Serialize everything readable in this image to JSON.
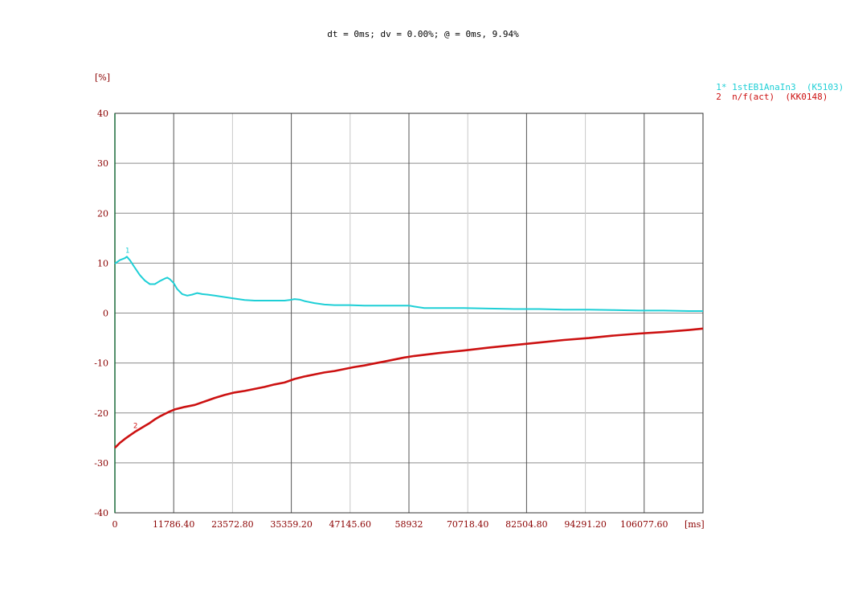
{
  "header_text": "dt = 0ms; dv = 0.00%; @ = 0ms, 9.94%",
  "legend": [
    {
      "text": "1* 1stEB1AnaIn3  (K5103)",
      "color": "#1ecfd6"
    },
    {
      "text": "2  n/f(act)  (KK0148)",
      "color": "#cc1111"
    }
  ],
  "chart_data": {
    "type": "line",
    "title": "dt = 0ms; dv = 0.00%; @ = 0ms, 9.94%",
    "xlabel": "[ms]",
    "ylabel": "[%]",
    "xlim": [
      0,
      117864
    ],
    "ylim": [
      -40,
      40
    ],
    "x_ticks": [
      0,
      11786.4,
      23572.8,
      35359.2,
      47145.6,
      58932,
      70718.4,
      82504.8,
      94291.2,
      106077.6
    ],
    "x_tick_labels": [
      "0",
      "11786.40",
      "23572.80",
      "35359.20",
      "47145.60",
      "58932",
      "70718.40",
      "82504.80",
      "94291.20",
      "106077.60"
    ],
    "y_ticks": [
      -40,
      -30,
      -20,
      -10,
      0,
      10,
      20,
      30,
      40
    ],
    "y_tick_labels": [
      "-40",
      "-30",
      "-20",
      "-10",
      "0",
      "10",
      "20",
      "30",
      "40"
    ],
    "grid": true,
    "legend_position": "top-right",
    "series": [
      {
        "name": "1* 1stEB1AnaIn3  (K5103)",
        "marker_label": "1",
        "color": "#1ecfd6",
        "x": [
          0,
          1000,
          2000,
          2400,
          3000,
          4000,
          5000,
          6000,
          7000,
          8000,
          9000,
          10000,
          10500,
          11000,
          11786,
          12500,
          13500,
          14500,
          15500,
          16500,
          17500,
          18500,
          20000,
          22000,
          24000,
          26000,
          28000,
          30000,
          32000,
          34000,
          35000,
          36000,
          37000,
          38000,
          40000,
          42000,
          44000,
          47000,
          50000,
          55000,
          58932,
          60000,
          62000,
          65000,
          70000,
          75000,
          80000,
          85000,
          90000,
          95000,
          100000,
          105000,
          110000,
          115000,
          117864
        ],
        "y": [
          9.9,
          10.6,
          11.0,
          11.3,
          10.6,
          9.1,
          7.6,
          6.5,
          5.8,
          5.8,
          6.4,
          6.9,
          7.1,
          6.8,
          6.0,
          4.8,
          3.8,
          3.5,
          3.7,
          4.0,
          3.8,
          3.7,
          3.5,
          3.2,
          2.9,
          2.6,
          2.5,
          2.5,
          2.5,
          2.5,
          2.6,
          2.8,
          2.7,
          2.4,
          2.0,
          1.7,
          1.6,
          1.6,
          1.5,
          1.5,
          1.5,
          1.3,
          1.0,
          1.0,
          1.0,
          0.9,
          0.8,
          0.8,
          0.7,
          0.7,
          0.6,
          0.5,
          0.5,
          0.4,
          0.4
        ]
      },
      {
        "name": "2  n/f(act)  (KK0148)",
        "marker_label": "2",
        "color": "#cc1111",
        "x": [
          0,
          1000,
          2000,
          3000,
          4000,
          5000,
          6000,
          7000,
          8000,
          9000,
          10000,
          11000,
          12000,
          14000,
          16000,
          18000,
          20000,
          22000,
          24000,
          26000,
          28000,
          30000,
          32000,
          34000,
          36000,
          38000,
          40000,
          42000,
          44000,
          46000,
          48000,
          50000,
          52000,
          54000,
          56000,
          58000,
          60000,
          65000,
          70000,
          75000,
          80000,
          85000,
          90000,
          95000,
          100000,
          105000,
          110000,
          115000,
          117864
        ],
        "y": [
          -27.0,
          -26.0,
          -25.2,
          -24.5,
          -23.8,
          -23.2,
          -22.6,
          -22.0,
          -21.3,
          -20.7,
          -20.2,
          -19.7,
          -19.3,
          -18.8,
          -18.4,
          -17.7,
          -17.0,
          -16.4,
          -15.9,
          -15.6,
          -15.2,
          -14.8,
          -14.3,
          -13.9,
          -13.2,
          -12.7,
          -12.3,
          -11.9,
          -11.6,
          -11.2,
          -10.8,
          -10.5,
          -10.1,
          -9.7,
          -9.3,
          -8.9,
          -8.6,
          -8.0,
          -7.5,
          -6.9,
          -6.4,
          -5.9,
          -5.4,
          -5.0,
          -4.5,
          -4.1,
          -3.8,
          -3.4,
          -3.1
        ]
      }
    ]
  }
}
